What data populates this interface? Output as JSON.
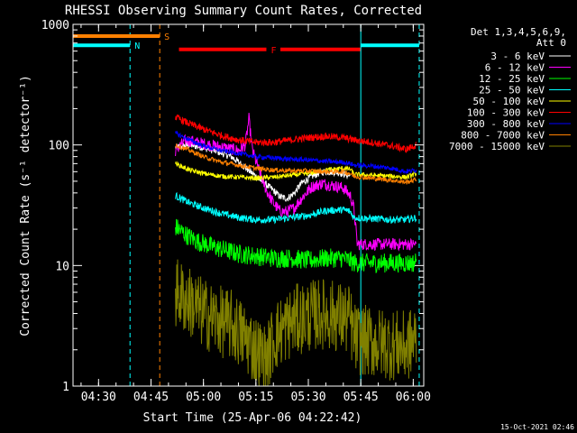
{
  "chart_data": {
    "type": "line",
    "title": "RHESSI Observing Summary Count Rates, Corrected",
    "xlabel": "Start Time (25-Apr-06 04:22:42)",
    "ylabel": "Corrected Count Rate (s⁻¹ detector⁻¹)",
    "ylog": true,
    "ylim": [
      1,
      1000
    ],
    "xlim": [
      262.7,
      363
    ],
    "x_ticks": [
      {
        "m": 270,
        "label": "04:30"
      },
      {
        "m": 285,
        "label": "04:45"
      },
      {
        "m": 300,
        "label": "05:00"
      },
      {
        "m": 315,
        "label": "05:15"
      },
      {
        "m": 330,
        "label": "05:30"
      },
      {
        "m": 345,
        "label": "05:45"
      },
      {
        "m": 360,
        "label": "06:00"
      }
    ],
    "y_ticks": [
      {
        "v": 1,
        "label": "1"
      },
      {
        "v": 10,
        "label": "10"
      },
      {
        "v": 100,
        "label": "100"
      },
      {
        "v": 1000,
        "label": "1000"
      }
    ],
    "legend": {
      "header": [
        "Det 1,3,4,5,6,9,",
        "Att 0"
      ],
      "placement": "right"
    },
    "series": [
      {
        "name": "3 - 6 keV",
        "color": "#ffffff",
        "noise": 0.03,
        "points": [
          [
            292,
            95
          ],
          [
            296,
            100
          ],
          [
            300,
            95
          ],
          [
            304,
            88
          ],
          [
            308,
            80
          ],
          [
            312,
            65
          ],
          [
            316,
            52
          ],
          [
            320,
            42
          ],
          [
            322,
            37
          ],
          [
            324,
            36
          ],
          [
            326,
            40
          ],
          [
            328,
            48
          ],
          [
            331,
            55
          ],
          [
            334,
            60
          ],
          [
            337,
            60
          ],
          [
            340,
            58
          ],
          [
            342,
            55
          ]
        ]
      },
      {
        "name": "6 - 12 keV",
        "color": "#ff00ff",
        "noise": 0.05,
        "points": [
          [
            292,
            90
          ],
          [
            295,
            110
          ],
          [
            298,
            105
          ],
          [
            302,
            100
          ],
          [
            306,
            95
          ],
          [
            310,
            90
          ],
          [
            312,
            100
          ],
          [
            313,
            165
          ],
          [
            314,
            90
          ],
          [
            316,
            60
          ],
          [
            318,
            42
          ],
          [
            320,
            33
          ],
          [
            322,
            28
          ],
          [
            324,
            28
          ],
          [
            326,
            30
          ],
          [
            328,
            36
          ],
          [
            331,
            45
          ],
          [
            334,
            48
          ],
          [
            337,
            46
          ],
          [
            340,
            44
          ],
          [
            342,
            38
          ],
          [
            343,
            30
          ],
          [
            344,
            15
          ],
          [
            346,
            15
          ],
          [
            350,
            15
          ],
          [
            354,
            15
          ],
          [
            358,
            15
          ],
          [
            361,
            15
          ]
        ]
      },
      {
        "name": "12 - 25 keV",
        "color": "#00ff00",
        "noise": 0.08,
        "points": [
          [
            292,
            21
          ],
          [
            295,
            18
          ],
          [
            298,
            16
          ],
          [
            302,
            14.5
          ],
          [
            306,
            13.5
          ],
          [
            310,
            12.5
          ],
          [
            315,
            12
          ],
          [
            320,
            11.5
          ],
          [
            325,
            11.5
          ],
          [
            330,
            11
          ],
          [
            335,
            11.5
          ],
          [
            340,
            11.5
          ],
          [
            342,
            11
          ],
          [
            343,
            10.5
          ],
          [
            346,
            10.5
          ],
          [
            350,
            10.5
          ],
          [
            355,
            10.5
          ],
          [
            360,
            10.5
          ],
          [
            361,
            11
          ]
        ]
      },
      {
        "name": "25 - 50 keV",
        "color": "#00ffff",
        "noise": 0.03,
        "points": [
          [
            292,
            38
          ],
          [
            296,
            33
          ],
          [
            300,
            30
          ],
          [
            305,
            27
          ],
          [
            310,
            25
          ],
          [
            315,
            24
          ],
          [
            320,
            24
          ],
          [
            325,
            25
          ],
          [
            330,
            26
          ],
          [
            335,
            28.5
          ],
          [
            340,
            29
          ],
          [
            342,
            28
          ],
          [
            343,
            25
          ],
          [
            348,
            24.5
          ],
          [
            354,
            24
          ],
          [
            358,
            24
          ],
          [
            361,
            25
          ]
        ]
      },
      {
        "name": "50 - 100 keV",
        "color": "#ffff00",
        "noise": 0.02,
        "points": [
          [
            292,
            70
          ],
          [
            296,
            62
          ],
          [
            300,
            58
          ],
          [
            305,
            55
          ],
          [
            310,
            54
          ],
          [
            315,
            53
          ],
          [
            320,
            54
          ],
          [
            325,
            56
          ],
          [
            330,
            58
          ],
          [
            335,
            62
          ],
          [
            340,
            64
          ],
          [
            342,
            63
          ],
          [
            343,
            57
          ],
          [
            348,
            56
          ],
          [
            354,
            55
          ],
          [
            358,
            54
          ],
          [
            361,
            58
          ]
        ]
      },
      {
        "name": "100 - 300 keV",
        "color": "#ff0000",
        "noise": 0.03,
        "points": [
          [
            292,
            170
          ],
          [
            296,
            150
          ],
          [
            300,
            135
          ],
          [
            305,
            120
          ],
          [
            310,
            110
          ],
          [
            315,
            105
          ],
          [
            320,
            105
          ],
          [
            325,
            110
          ],
          [
            330,
            115
          ],
          [
            335,
            118
          ],
          [
            340,
            115
          ],
          [
            343,
            110
          ],
          [
            348,
            105
          ],
          [
            354,
            98
          ],
          [
            358,
            92
          ],
          [
            361,
            100
          ]
        ]
      },
      {
        "name": "300 - 800 keV",
        "color": "#0000ff",
        "noise": 0.02,
        "points": [
          [
            292,
            125
          ],
          [
            296,
            110
          ],
          [
            300,
            98
          ],
          [
            305,
            90
          ],
          [
            310,
            85
          ],
          [
            315,
            80
          ],
          [
            320,
            78
          ],
          [
            325,
            76
          ],
          [
            330,
            75
          ],
          [
            335,
            73
          ],
          [
            340,
            72
          ],
          [
            342,
            70
          ],
          [
            343,
            68
          ],
          [
            348,
            67
          ],
          [
            354,
            64
          ],
          [
            358,
            60
          ],
          [
            361,
            62
          ]
        ]
      },
      {
        "name": "800 - 7000 keV",
        "color": "#ff8000",
        "noise": 0.02,
        "points": [
          [
            292,
            100
          ],
          [
            296,
            90
          ],
          [
            300,
            80
          ],
          [
            305,
            72
          ],
          [
            310,
            68
          ],
          [
            315,
            64
          ],
          [
            320,
            62
          ],
          [
            325,
            61
          ],
          [
            330,
            61
          ],
          [
            335,
            60
          ],
          [
            340,
            60
          ],
          [
            342,
            58
          ],
          [
            343,
            55
          ],
          [
            348,
            53
          ],
          [
            354,
            51
          ],
          [
            358,
            49
          ],
          [
            361,
            52
          ]
        ]
      },
      {
        "name": "7000 - 15000 keV",
        "color": "#808000",
        "noise": 0.3,
        "points": [
          [
            292,
            6
          ],
          [
            296,
            5
          ],
          [
            300,
            4
          ],
          [
            304,
            3.5
          ],
          [
            308,
            3.2
          ],
          [
            312,
            2.5
          ],
          [
            315,
            2
          ],
          [
            318,
            1.6
          ],
          [
            320,
            2.5
          ],
          [
            323,
            3
          ],
          [
            326,
            3.5
          ],
          [
            330,
            3.8
          ],
          [
            334,
            4
          ],
          [
            338,
            3.8
          ],
          [
            342,
            3.5
          ],
          [
            343,
            2.5
          ],
          [
            348,
            2.3
          ],
          [
            354,
            2.2
          ],
          [
            358,
            2.1
          ],
          [
            361,
            2.5
          ]
        ]
      }
    ],
    "markers": [
      {
        "label": "N",
        "color": "#00ffff",
        "y": 670,
        "segments": [
          [
            262.7,
            279
          ]
        ],
        "x_lines": [
          279
        ]
      },
      {
        "label": "S",
        "color": "#ff8000",
        "y": 800,
        "segments": [
          [
            262.7,
            287.5
          ]
        ],
        "x_lines": [
          287.5
        ]
      },
      {
        "label": "F",
        "color": "#ff0000",
        "y": 620,
        "segments": [
          [
            293,
            318
          ],
          [
            322,
            345
          ]
        ],
        "x_lines": []
      },
      {
        "label": "",
        "color": "#00ffff",
        "y": 670,
        "segments": [
          [
            345,
            361.7
          ]
        ],
        "x_lines": [
          345,
          361.7
        ]
      }
    ]
  },
  "footer": {
    "timestamp": "15-Oct-2021 02:46"
  }
}
